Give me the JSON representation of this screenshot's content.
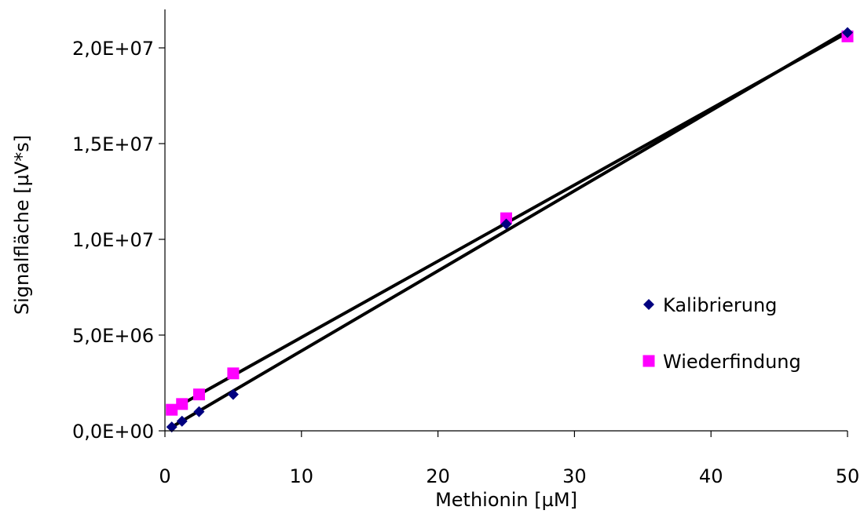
{
  "chart_data": {
    "type": "scatter",
    "xlabel": "Methionin [µM]",
    "ylabel": "Signalfläche [µV*s]",
    "xlim": [
      0,
      50
    ],
    "ylim": [
      0,
      22000000
    ],
    "x_ticks": [
      0,
      10,
      20,
      30,
      40,
      50
    ],
    "x_tick_labels": [
      "0",
      "10",
      "20",
      "30",
      "40",
      "50"
    ],
    "y_ticks": [
      0,
      5000000,
      10000000,
      15000000,
      20000000
    ],
    "y_tick_labels": [
      "0,0E+00",
      "5,0E+06",
      "1,0E+07",
      "1,5E+07",
      "2,0E+07"
    ],
    "grid": false,
    "legend_position": "right",
    "series": [
      {
        "name": "Kalibrierung",
        "marker": "diamond",
        "color": "#000080",
        "x": [
          0.5,
          1.25,
          2.5,
          5,
          25,
          50
        ],
        "y": [
          200000,
          500000,
          1000000,
          1900000,
          10800000,
          20800000
        ],
        "trendline": {
          "x": [
            0.5,
            50
          ],
          "y": [
            200000,
            20900000
          ]
        }
      },
      {
        "name": "Wiederfindung",
        "marker": "square",
        "color": "#ff00ff",
        "x": [
          0.5,
          1.25,
          2.5,
          5,
          25,
          50
        ],
        "y": [
          1100000,
          1400000,
          1900000,
          3000000,
          11100000,
          20600000
        ],
        "trendline": {
          "x": [
            0.5,
            50
          ],
          "y": [
            1100000,
            20800000
          ]
        }
      }
    ],
    "trendline_color": "#000000"
  }
}
